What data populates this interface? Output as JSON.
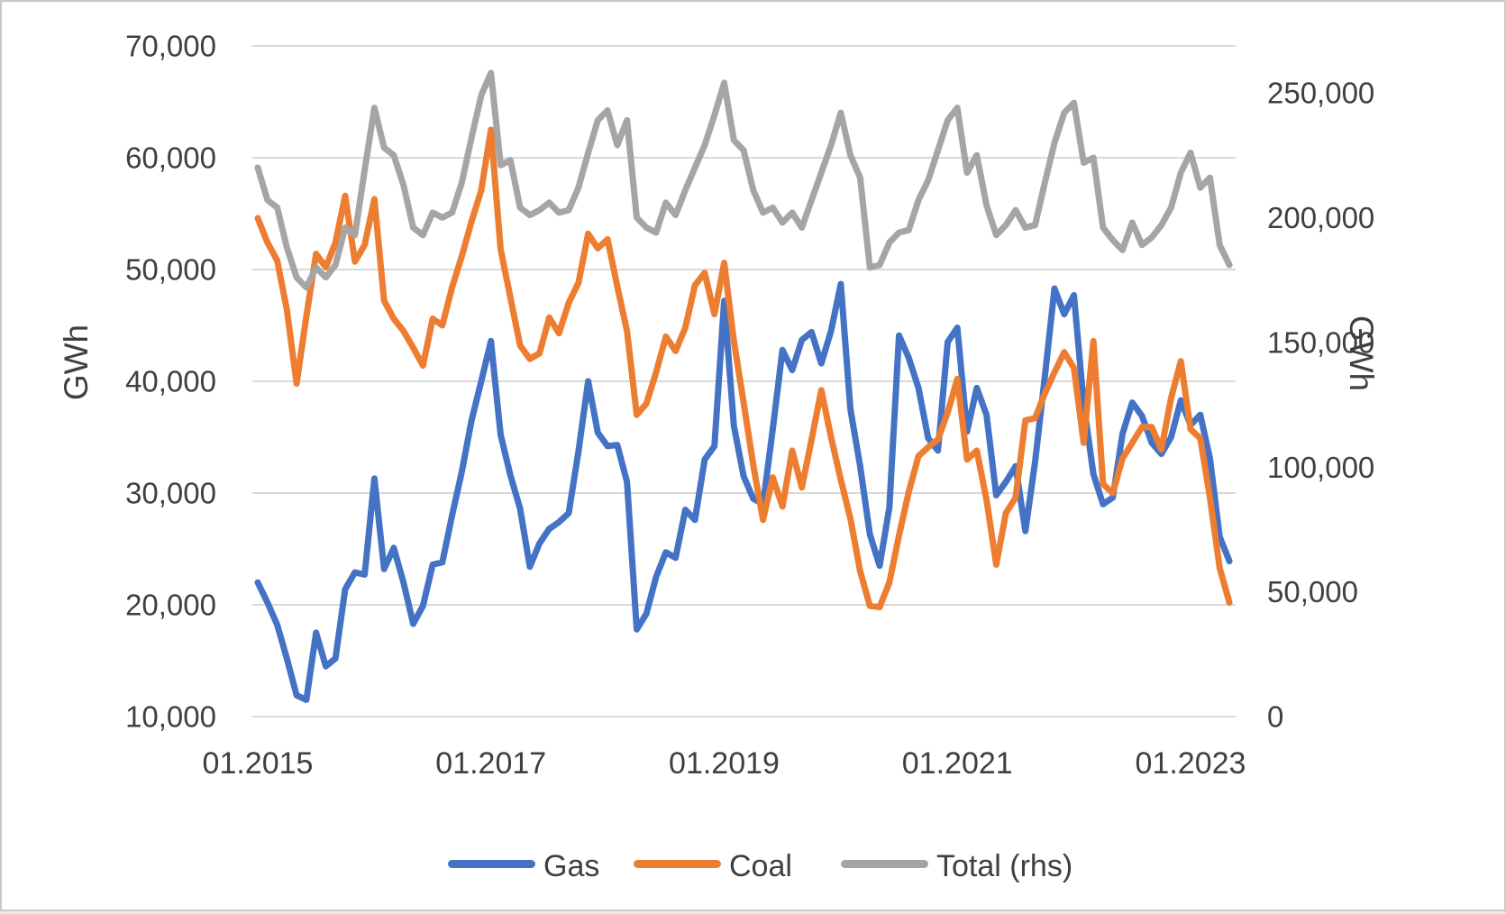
{
  "chart_data": {
    "type": "line",
    "title": "",
    "grid": "horizontal-only",
    "legend_position": "bottom-center",
    "left_axis": {
      "title": "GWh",
      "min": 10000,
      "max": 70000,
      "ticks": [
        "70,000",
        "60,000",
        "50,000",
        "40,000",
        "30,000",
        "20,000",
        "10,000"
      ]
    },
    "right_axis": {
      "title": "GWh",
      "min": 0,
      "max": 250000,
      "ticks": [
        "250,000",
        "200,000",
        "150,000",
        "100,000",
        "50,000",
        "0"
      ]
    },
    "x_axis": {
      "tick_labels": [
        "01.2015",
        "01.2017",
        "01.2019",
        "01.2021",
        "01.2023"
      ]
    },
    "months": [
      "01.2015",
      "02.2015",
      "03.2015",
      "04.2015",
      "05.2015",
      "06.2015",
      "07.2015",
      "08.2015",
      "09.2015",
      "10.2015",
      "11.2015",
      "12.2015",
      "01.2016",
      "02.2016",
      "03.2016",
      "04.2016",
      "05.2016",
      "06.2016",
      "07.2016",
      "08.2016",
      "09.2016",
      "10.2016",
      "11.2016",
      "12.2016",
      "01.2017",
      "02.2017",
      "03.2017",
      "04.2017",
      "05.2017",
      "06.2017",
      "07.2017",
      "08.2017",
      "09.2017",
      "10.2017",
      "11.2017",
      "12.2017",
      "01.2018",
      "02.2018",
      "03.2018",
      "04.2018",
      "05.2018",
      "06.2018",
      "07.2018",
      "08.2018",
      "09.2018",
      "10.2018",
      "11.2018",
      "12.2018",
      "01.2019",
      "02.2019",
      "03.2019",
      "04.2019",
      "05.2019",
      "06.2019",
      "07.2019",
      "08.2019",
      "09.2019",
      "10.2019",
      "11.2019",
      "12.2019",
      "01.2020",
      "02.2020",
      "03.2020",
      "04.2020",
      "05.2020",
      "06.2020",
      "07.2020",
      "08.2020",
      "09.2020",
      "10.2020",
      "11.2020",
      "12.2020",
      "01.2021",
      "02.2021",
      "03.2021",
      "04.2021",
      "05.2021",
      "06.2021",
      "07.2021",
      "08.2021",
      "09.2021",
      "10.2021",
      "11.2021",
      "12.2021",
      "01.2022",
      "02.2022",
      "03.2022",
      "04.2022",
      "05.2022",
      "06.2022",
      "07.2022",
      "08.2022",
      "09.2022",
      "10.2022",
      "11.2022",
      "12.2022",
      "01.2023",
      "02.2023",
      "03.2023",
      "04.2023",
      "05.2023"
    ],
    "series": [
      {
        "name": "Gas",
        "axis": "left",
        "color": "#4472C4",
        "values": [
          22000,
          20200,
          18200,
          15200,
          11900,
          11500,
          17500,
          14500,
          15200,
          21400,
          22900,
          22700,
          31300,
          23200,
          25100,
          22000,
          18300,
          19900,
          23600,
          23800,
          28000,
          31900,
          36500,
          40000,
          43600,
          35200,
          31600,
          28600,
          23400,
          25500,
          26800,
          27400,
          28200,
          33700,
          40000,
          35400,
          34200,
          34300,
          31000,
          17800,
          19200,
          22500,
          24700,
          24200,
          28500,
          27600,
          33000,
          34200,
          47200,
          36000,
          31500,
          29500,
          29000,
          35700,
          42800,
          41000,
          43700,
          44400,
          41600,
          44500,
          48700,
          37500,
          32400,
          26300,
          23500,
          28700,
          44100,
          42100,
          39400,
          34900,
          33800,
          43500,
          44800,
          35500,
          39400,
          37000,
          29800,
          31000,
          32400,
          26600,
          32800,
          40400,
          48300,
          46000,
          47700,
          38000,
          31700,
          29000,
          29600,
          35300,
          38100,
          36900,
          34500,
          33500,
          35000,
          38300,
          36100,
          37000,
          33100,
          26100,
          23900
        ]
      },
      {
        "name": "Coal",
        "axis": "left",
        "color": "#ED7D31",
        "values": [
          54600,
          52400,
          50800,
          46400,
          39800,
          45800,
          51400,
          50200,
          52400,
          56600,
          50700,
          52200,
          56300,
          47200,
          45600,
          44500,
          43000,
          41400,
          45600,
          45000,
          48400,
          51200,
          54300,
          57100,
          62500,
          51800,
          47500,
          43200,
          42000,
          42500,
          45700,
          44300,
          47000,
          48800,
          53200,
          51900,
          52700,
          48500,
          44500,
          37000,
          38000,
          40800,
          44000,
          42700,
          44800,
          48600,
          49700,
          46000,
          50600,
          43600,
          38100,
          32500,
          27600,
          31400,
          28800,
          33800,
          30500,
          34800,
          39200,
          35000,
          31200,
          27700,
          23000,
          19900,
          19800,
          22000,
          26200,
          30100,
          33300,
          34100,
          34800,
          37200,
          40200,
          33000,
          33800,
          29400,
          23600,
          28200,
          29600,
          36500,
          36700,
          38900,
          40800,
          42600,
          41200,
          34500,
          43600,
          30800,
          30000,
          33100,
          34500,
          35900,
          35900,
          33900,
          38500,
          41800,
          35700,
          34900,
          29600,
          23300,
          20200
        ]
      },
      {
        "name": "Total (rhs)",
        "axis": "right",
        "color": "#A5A5A5",
        "values": [
          220000,
          207000,
          204000,
          188000,
          176000,
          172000,
          180000,
          176000,
          181000,
          196000,
          193000,
          219000,
          244000,
          228000,
          225000,
          213000,
          196000,
          193000,
          202000,
          200000,
          202000,
          214000,
          232000,
          249000,
          258000,
          221000,
          223000,
          204000,
          201000,
          203000,
          206000,
          202000,
          203000,
          212000,
          226000,
          239000,
          243000,
          229000,
          239000,
          200000,
          196000,
          194000,
          206000,
          201000,
          211000,
          220000,
          229000,
          241000,
          254000,
          231000,
          227000,
          211000,
          202000,
          204000,
          198000,
          202000,
          196000,
          207000,
          218000,
          229000,
          242000,
          225000,
          216000,
          180000,
          181000,
          190000,
          194000,
          195000,
          207000,
          215000,
          227000,
          239000,
          244000,
          218000,
          225000,
          205000,
          193000,
          197000,
          203000,
          196000,
          197000,
          214000,
          230000,
          242000,
          246000,
          222000,
          224000,
          196000,
          191000,
          187000,
          198000,
          189000,
          192000,
          197000,
          204000,
          218000,
          226000,
          212000,
          216000,
          189000,
          181000
        ]
      }
    ],
    "legend": [
      {
        "label": "Gas",
        "color": "#4472C4"
      },
      {
        "label": "Coal",
        "color": "#ED7D31"
      },
      {
        "label": "Total (rhs)",
        "color": "#A5A5A5"
      }
    ],
    "colors": {
      "gridline": "#D9D9D9",
      "text": "#3f3f3f",
      "background": "#FFFFFF"
    }
  }
}
